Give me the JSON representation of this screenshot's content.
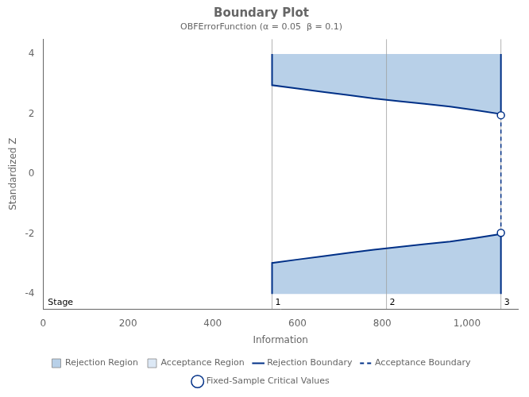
{
  "chart_data": {
    "type": "line",
    "title": "Boundary Plot",
    "subtitle": "OBFErrorFunction (α = 0.05  β = 0.1)",
    "x_label": "Information",
    "y_label": "Standardized Z",
    "xlim": [
      0,
      1120
    ],
    "ylim": [
      -4.5,
      4.5
    ],
    "xticks": [
      0,
      200,
      400,
      600,
      800,
      1000
    ],
    "yticks": [
      -4,
      -2,
      0,
      2,
      4
    ],
    "grid": false,
    "legend": "bottom",
    "annotation": "Stage",
    "stages": {
      "x": [
        540,
        810,
        1080
      ],
      "labels": [
        "1",
        "2",
        "3"
      ],
      "color": "#a0a0a0"
    },
    "series": [
      {
        "name": "Rejection Region",
        "type": "area",
        "color": "#b8d0e8"
      },
      {
        "name": "Acceptance Region",
        "type": "area",
        "color": "#dce8f5"
      },
      {
        "name": "Rejection Boundary",
        "type": "line",
        "color": "#003087",
        "line_style": "solid",
        "x": [
          540,
          600,
          660,
          720,
          780,
          840,
          900,
          960,
          1020,
          1080
        ],
        "upper": [
          2.963,
          2.85,
          2.74,
          2.63,
          2.52,
          2.43,
          2.34,
          2.25,
          2.13,
          2.0
        ],
        "lower": [
          -2.963,
          -2.85,
          -2.74,
          -2.63,
          -2.52,
          -2.43,
          -2.34,
          -2.25,
          -2.13,
          -2.0
        ],
        "upper_wall": 4.0,
        "lower_wall": -4.0
      },
      {
        "name": "Acceptance Boundary",
        "type": "line",
        "color": "#003087",
        "line_style": "dashed",
        "x": [
          1080,
          1080
        ],
        "values": [
          1.96,
          -1.96
        ]
      },
      {
        "name": "Fixed-Sample Critical Values",
        "type": "scatter",
        "color": "#003087",
        "marker": "circle",
        "x": [
          1080,
          1080
        ],
        "values": [
          1.96,
          -1.96
        ]
      }
    ]
  }
}
